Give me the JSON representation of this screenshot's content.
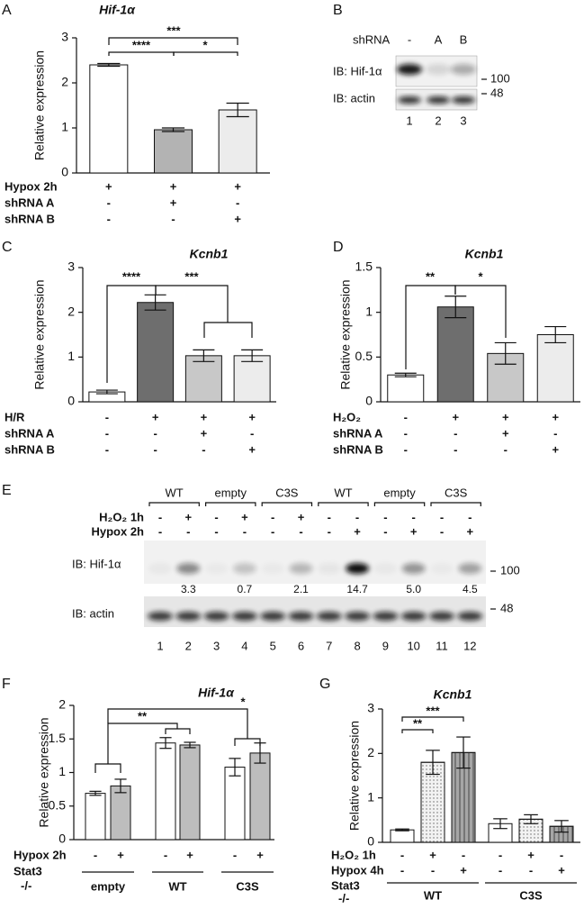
{
  "chart_data": [
    {
      "type": "bar",
      "panel": "A",
      "title": "Hif-1α",
      "ylabel": "Relative expression",
      "ylim": [
        0,
        3
      ],
      "yticks": [
        0,
        1,
        2,
        3
      ],
      "values": [
        2.4,
        0.96,
        1.4
      ],
      "errors": [
        0.03,
        0.04,
        0.15
      ],
      "colors": [
        "#ffffff",
        "#b3b3b3",
        "#ececec"
      ],
      "significance": [
        "****",
        "*",
        "***"
      ],
      "rows": [
        {
          "label": "Hypox 2h",
          "values": [
            "+",
            "+",
            "+"
          ]
        },
        {
          "label": "shRNA A",
          "values": [
            "-",
            "+",
            "-"
          ]
        },
        {
          "label": "shRNA B",
          "values": [
            "-",
            "-",
            "+"
          ]
        }
      ]
    },
    {
      "type": "bar",
      "panel": "C",
      "title": "Kcnb1",
      "ylabel": "Relative expression",
      "ylim": [
        0,
        3
      ],
      "yticks": [
        0,
        1,
        2,
        3
      ],
      "values": [
        0.22,
        2.22,
        1.03,
        1.03
      ],
      "errors": [
        0.04,
        0.17,
        0.13,
        0.13
      ],
      "colors": [
        "#ffffff",
        "#6e6e6e",
        "#c8c8c8",
        "#ececec"
      ],
      "significance": [
        "****",
        "***"
      ],
      "rows": [
        {
          "label": "H/R",
          "values": [
            "-",
            "+",
            "+",
            "+"
          ]
        },
        {
          "label": "shRNA A",
          "values": [
            "-",
            "-",
            "+",
            "-"
          ]
        },
        {
          "label": "shRNA B",
          "values": [
            "-",
            "-",
            "-",
            "+"
          ]
        }
      ]
    },
    {
      "type": "bar",
      "panel": "D",
      "title": "Kcnb1",
      "ylabel": "Relative expression",
      "ylim": [
        0,
        1.5
      ],
      "yticks": [
        0,
        0.5,
        1,
        1.5
      ],
      "values": [
        0.3,
        1.06,
        0.54,
        0.75
      ],
      "errors": [
        0.02,
        0.12,
        0.12,
        0.09
      ],
      "colors": [
        "#ffffff",
        "#6e6e6e",
        "#c8c8c8",
        "#ececec"
      ],
      "significance": [
        "**",
        "*"
      ],
      "rows": [
        {
          "label": "H₂O₂",
          "values": [
            "-",
            "+",
            "+",
            "+"
          ]
        },
        {
          "label": "shRNA A",
          "values": [
            "-",
            "-",
            "+",
            "-"
          ]
        },
        {
          "label": "shRNA B",
          "values": [
            "-",
            "-",
            "-",
            "+"
          ]
        }
      ]
    },
    {
      "type": "bar",
      "panel": "F",
      "title": "Hif-1α",
      "ylabel": "Relative expression",
      "ylim": [
        0,
        2
      ],
      "yticks": [
        0,
        0.5,
        1,
        1.5,
        2
      ],
      "values": [
        0.69,
        0.8,
        1.44,
        1.41,
        1.08,
        1.29
      ],
      "errors": [
        0.03,
        0.1,
        0.08,
        0.04,
        0.13,
        0.15
      ],
      "colors": [
        "#ffffff",
        "#bdbdbd",
        "#ffffff",
        "#bdbdbd",
        "#ffffff",
        "#bdbdbd"
      ],
      "significance": [
        "**",
        "*"
      ],
      "rows": [
        {
          "label": "Hypox 2h",
          "values": [
            "-",
            "+",
            "-",
            "+",
            "-",
            "+"
          ]
        }
      ],
      "group_title": [
        "Stat3",
        "-/-"
      ],
      "groups": [
        "empty",
        "WT",
        "C3S"
      ]
    },
    {
      "type": "bar",
      "panel": "G",
      "title": "Kcnb1",
      "ylabel": "Relative expression",
      "ylim": [
        0,
        3
      ],
      "yticks": [
        0,
        1,
        2,
        3
      ],
      "values": [
        0.28,
        1.8,
        2.02,
        0.42,
        0.52,
        0.36
      ],
      "errors": [
        0.02,
        0.27,
        0.35,
        0.11,
        0.1,
        0.13
      ],
      "colors": [
        "#ffffff",
        "#f2f2f2",
        "#a6a6a6",
        "#ffffff",
        "#f2f2f2",
        "#a6a6a6"
      ],
      "patterns": [
        "plain",
        "dots",
        "stripes",
        "plain",
        "dots",
        "stripes"
      ],
      "significance": [
        "**",
        "***"
      ],
      "rows": [
        {
          "label": "H₂O₂ 1h",
          "values": [
            "-",
            "+",
            "-",
            "-",
            "+",
            "-"
          ]
        },
        {
          "label": "Hypox 4h",
          "values": [
            "-",
            "-",
            "+",
            "-",
            "-",
            "+"
          ]
        }
      ],
      "group_title": [
        "Stat3",
        "-/-"
      ],
      "groups": [
        "WT",
        "C3S"
      ]
    }
  ],
  "blots": [
    {
      "panel": "B",
      "header_label": "shRNA",
      "header": [
        "-",
        "A",
        "B"
      ],
      "rows": [
        "IB: Hif-1α",
        "IB: actin"
      ],
      "markers": [
        "100",
        "48"
      ],
      "lanes": [
        "1",
        "2",
        "3"
      ]
    },
    {
      "panel": "E",
      "groups": [
        "WT",
        "empty",
        "C3S",
        "WT",
        "empty",
        "C3S"
      ],
      "conditions": [
        {
          "label": "H₂O₂ 1h",
          "values": [
            "-",
            "+",
            "-",
            "+",
            "-",
            "+",
            "-",
            "-",
            "-",
            "-",
            "-",
            "-"
          ]
        },
        {
          "label": "Hypox 2h",
          "values": [
            "-",
            "-",
            "-",
            "-",
            "-",
            "-",
            "-",
            "+",
            "-",
            "+",
            "-",
            "+"
          ]
        }
      ],
      "rows": [
        "IB: Hif-1α",
        "IB: actin"
      ],
      "markers": [
        "100",
        "48"
      ],
      "quantification": [
        "3.3",
        "0.7",
        "2.1",
        "14.7",
        "5.0",
        "4.5"
      ],
      "lanes": [
        "1",
        "2",
        "3",
        "4",
        "5",
        "6",
        "7",
        "8",
        "9",
        "10",
        "11",
        "12"
      ]
    }
  ]
}
